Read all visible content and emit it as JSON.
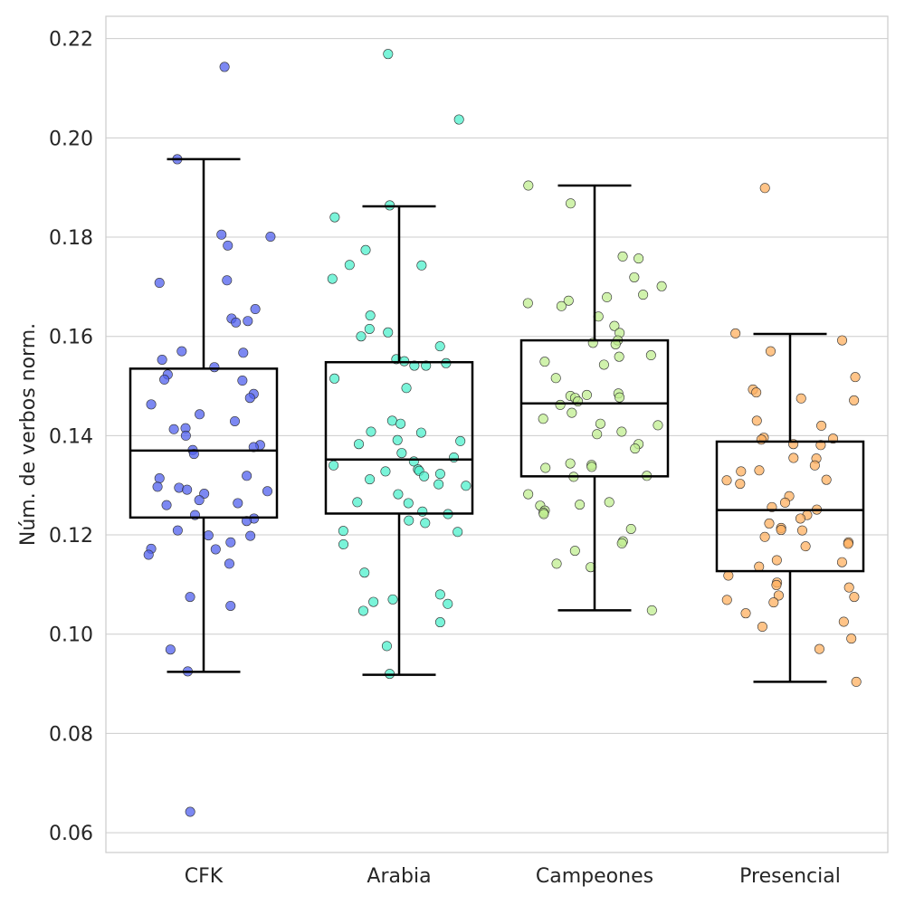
{
  "chart_data": {
    "type": "box",
    "ylabel": "Núm. de verbos norm.",
    "xlabel": "",
    "ylim": [
      0.056,
      0.2245
    ],
    "yticks": [
      "0.06",
      "0.08",
      "0.10",
      "0.12",
      "0.14",
      "0.16",
      "0.18",
      "0.20",
      "0.22"
    ],
    "grid": true,
    "categories": [
      "CFK",
      "Arabia",
      "Campeones",
      "Presencial"
    ],
    "colors": [
      "#5060ee",
      "#4ef0cc",
      "#c0ee90",
      "#ffb060"
    ],
    "boxes": [
      {
        "name": "CFK",
        "whisker_low": 0.0924,
        "q1": 0.1235,
        "median": 0.137,
        "q3": 0.1535,
        "whisker_high": 0.1957
      },
      {
        "name": "Arabia",
        "whisker_low": 0.0918,
        "q1": 0.1243,
        "median": 0.1352,
        "q3": 0.1548,
        "whisker_high": 0.1862
      },
      {
        "name": "Campeones",
        "whisker_low": 0.1048,
        "q1": 0.1318,
        "median": 0.1465,
        "q3": 0.1592,
        "whisker_high": 0.1904
      },
      {
        "name": "Presencial",
        "whisker_low": 0.0904,
        "q1": 0.1127,
        "median": 0.125,
        "q3": 0.1388,
        "whisker_high": 0.1605
      }
    ],
    "points": [
      {
        "category": "CFK",
        "values": [
          0.2143,
          0.1957,
          0.1805,
          0.1801,
          0.1783,
          0.1713,
          0.1708,
          0.1655,
          0.1636,
          0.1631,
          0.1628,
          0.157,
          0.1567,
          0.1553,
          0.1538,
          0.1523,
          0.1513,
          0.1511,
          0.1484,
          0.1476,
          0.1463,
          0.1443,
          0.1429,
          0.1415,
          0.1413,
          0.14,
          0.1381,
          0.1377,
          0.1371,
          0.1363,
          0.1319,
          0.1314,
          0.1297,
          0.1295,
          0.1291,
          0.1283,
          0.1288,
          0.127,
          0.1264,
          0.126,
          0.124,
          0.1233,
          0.1228,
          0.1209,
          0.1199,
          0.1198,
          0.1185,
          0.1172,
          0.1171,
          0.116,
          0.1142,
          0.1075,
          0.1057,
          0.0969,
          0.0925,
          0.0642
        ]
      },
      {
        "category": "Arabia",
        "values": [
          0.2169,
          0.2037,
          0.1864,
          0.184,
          0.1774,
          0.1744,
          0.1743,
          0.1716,
          0.1642,
          0.1615,
          0.1608,
          0.16,
          0.158,
          0.1554,
          0.155,
          0.1546,
          0.1541,
          0.1541,
          0.1515,
          0.1496,
          0.143,
          0.1424,
          0.1406,
          0.1408,
          0.1391,
          0.1389,
          0.1383,
          0.1365,
          0.1356,
          0.1348,
          0.134,
          0.1332,
          0.1329,
          0.1328,
          0.1323,
          0.1318,
          0.1312,
          0.1302,
          0.1299,
          0.1282,
          0.1266,
          0.1264,
          0.1247,
          0.1242,
          0.1229,
          0.1224,
          0.1208,
          0.1206,
          0.1181,
          0.1124,
          0.107,
          0.108,
          0.1065,
          0.1061,
          0.1047,
          0.1024,
          0.0976,
          0.092
        ]
      },
      {
        "category": "Campeones",
        "values": [
          0.1904,
          0.1868,
          0.1761,
          0.1757,
          0.1719,
          0.1701,
          0.1679,
          0.1684,
          0.1672,
          0.1667,
          0.1661,
          0.164,
          0.1621,
          0.1607,
          0.1592,
          0.1587,
          0.1584,
          0.1562,
          0.1559,
          0.1549,
          0.1543,
          0.1516,
          0.1485,
          0.1482,
          0.148,
          0.1477,
          0.1476,
          0.1469,
          0.1462,
          0.1446,
          0.1434,
          0.1424,
          0.1421,
          0.1408,
          0.1403,
          0.1383,
          0.1374,
          0.1344,
          0.1341,
          0.1337,
          0.1335,
          0.1319,
          0.1317,
          0.1282,
          0.1266,
          0.1261,
          0.1259,
          0.1249,
          0.1245,
          0.1242,
          0.1212,
          0.1187,
          0.1183,
          0.1168,
          0.1142,
          0.1135,
          0.1048
        ]
      },
      {
        "category": "Presencial",
        "values": [
          0.1899,
          0.1606,
          0.1592,
          0.157,
          0.1518,
          0.1493,
          0.1487,
          0.1475,
          0.1471,
          0.143,
          0.142,
          0.1396,
          0.1394,
          0.1392,
          0.1383,
          0.1381,
          0.1355,
          0.1354,
          0.134,
          0.133,
          0.1328,
          0.1311,
          0.131,
          0.1303,
          0.1278,
          0.1265,
          0.1256,
          0.1251,
          0.124,
          0.1233,
          0.1223,
          0.1214,
          0.121,
          0.1209,
          0.1196,
          0.1185,
          0.1182,
          0.1177,
          0.1149,
          0.1145,
          0.1136,
          0.1118,
          0.1104,
          0.1099,
          0.1094,
          0.1075,
          0.1069,
          0.1078,
          0.1064,
          0.1042,
          0.1025,
          0.1015,
          0.0991,
          0.097,
          0.0904
        ]
      }
    ]
  }
}
